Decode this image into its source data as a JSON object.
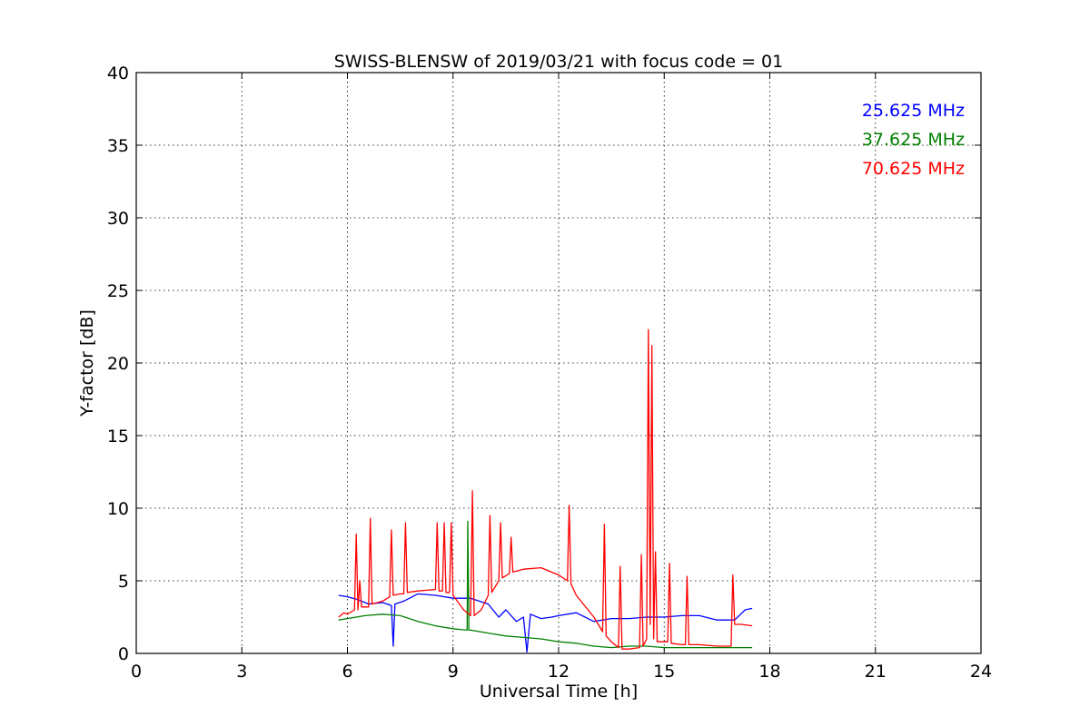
{
  "chart_data": {
    "type": "line",
    "title": "SWISS-BLENSW of 2019/03/21 with focus code = 01",
    "xlabel": "Universal Time [h]",
    "ylabel": "Y-factor [dB]",
    "xlim": [
      0,
      24
    ],
    "ylim": [
      0,
      40
    ],
    "xticks": [
      0,
      3,
      6,
      9,
      12,
      15,
      18,
      21,
      24
    ],
    "yticks": [
      0,
      5,
      10,
      15,
      20,
      25,
      30,
      35,
      40
    ],
    "xtick_labels": [
      "0",
      "3",
      "6",
      "9",
      "12",
      "15",
      "18",
      "21",
      "24"
    ],
    "ytick_labels": [
      "0",
      "5",
      "10",
      "15",
      "20",
      "25",
      "30",
      "35",
      "40"
    ],
    "grid": true,
    "legend_position": "top-right",
    "series": [
      {
        "name": "25.625 MHz",
        "color": "#0000ff",
        "x": [
          5.75,
          6.0,
          6.3,
          6.6,
          7.0,
          7.25,
          7.3,
          7.35,
          7.6,
          8.0,
          8.5,
          9.0,
          9.5,
          10.0,
          10.3,
          10.5,
          10.8,
          11.0,
          11.1,
          11.2,
          11.5,
          11.8,
          12.0,
          12.5,
          13.0,
          13.5,
          14.0,
          14.5,
          15.0,
          15.5,
          16.0,
          16.5,
          17.0,
          17.3,
          17.5
        ],
        "values": [
          4.0,
          3.9,
          3.7,
          3.4,
          3.5,
          3.3,
          0.5,
          3.4,
          3.6,
          4.1,
          4.0,
          3.8,
          3.8,
          3.4,
          2.5,
          3.0,
          2.2,
          2.5,
          0.1,
          2.7,
          2.4,
          2.5,
          2.6,
          2.8,
          2.2,
          2.4,
          2.4,
          2.5,
          2.5,
          2.6,
          2.6,
          2.3,
          2.3,
          3.0,
          3.1
        ]
      },
      {
        "name": "37.625 MHz",
        "color": "#008000",
        "x": [
          5.75,
          6.0,
          6.5,
          7.0,
          7.5,
          8.0,
          8.5,
          9.0,
          9.4,
          9.42,
          9.45,
          9.5,
          10.0,
          10.5,
          11.0,
          11.5,
          12.0,
          12.5,
          13.0,
          13.5,
          14.0,
          14.5,
          15.0,
          15.5,
          16.0,
          16.5,
          17.0,
          17.5
        ],
        "values": [
          2.3,
          2.4,
          2.6,
          2.7,
          2.6,
          2.2,
          1.9,
          1.7,
          1.6,
          9.1,
          1.6,
          1.6,
          1.4,
          1.2,
          1.1,
          1.0,
          0.8,
          0.7,
          0.5,
          0.4,
          0.5,
          0.5,
          0.4,
          0.4,
          0.4,
          0.4,
          0.4,
          0.4
        ]
      },
      {
        "name": "70.625 MHz",
        "color": "#ff0000",
        "x": [
          5.75,
          5.9,
          6.0,
          6.2,
          6.25,
          6.3,
          6.35,
          6.4,
          6.6,
          6.65,
          6.7,
          7.0,
          7.2,
          7.25,
          7.3,
          7.5,
          7.6,
          7.65,
          7.7,
          8.0,
          8.5,
          8.55,
          8.6,
          8.7,
          8.75,
          8.8,
          8.9,
          8.95,
          9.0,
          9.3,
          9.5,
          9.55,
          9.6,
          9.8,
          10.0,
          10.05,
          10.1,
          10.3,
          10.35,
          10.4,
          10.6,
          10.65,
          10.7,
          11.0,
          11.5,
          12.0,
          12.25,
          12.3,
          12.35,
          12.5,
          13.0,
          13.25,
          13.3,
          13.35,
          13.5,
          13.7,
          13.75,
          13.8,
          14.0,
          14.3,
          14.35,
          14.4,
          14.5,
          14.55,
          14.6,
          14.65,
          14.7,
          14.75,
          14.8,
          15.0,
          15.1,
          15.15,
          15.2,
          15.5,
          15.6,
          15.65,
          15.7,
          16.0,
          16.5,
          16.9,
          16.95,
          17.0,
          17.2,
          17.5
        ],
        "values": [
          2.5,
          2.8,
          2.7,
          3.0,
          8.2,
          3.0,
          5.0,
          3.2,
          3.2,
          9.3,
          3.4,
          3.6,
          3.9,
          8.5,
          4.0,
          4.1,
          4.1,
          9.0,
          4.2,
          4.3,
          4.4,
          9.0,
          4.3,
          4.3,
          9.0,
          4.2,
          4.2,
          9.0,
          4.0,
          3.0,
          2.6,
          11.2,
          2.6,
          3.0,
          4.0,
          9.5,
          4.2,
          5.0,
          9.0,
          5.2,
          5.5,
          8.0,
          5.6,
          5.8,
          5.9,
          5.4,
          5.0,
          10.2,
          4.8,
          4.0,
          2.5,
          1.5,
          8.9,
          1.2,
          0.8,
          0.4,
          6.0,
          0.3,
          0.3,
          0.4,
          6.8,
          0.5,
          1.0,
          22.3,
          2.0,
          21.2,
          1.0,
          7.0,
          0.8,
          0.8,
          0.8,
          6.2,
          0.7,
          0.6,
          0.6,
          5.3,
          0.6,
          0.6,
          0.5,
          0.5,
          5.4,
          2.0,
          2.0,
          1.9
        ]
      }
    ]
  }
}
